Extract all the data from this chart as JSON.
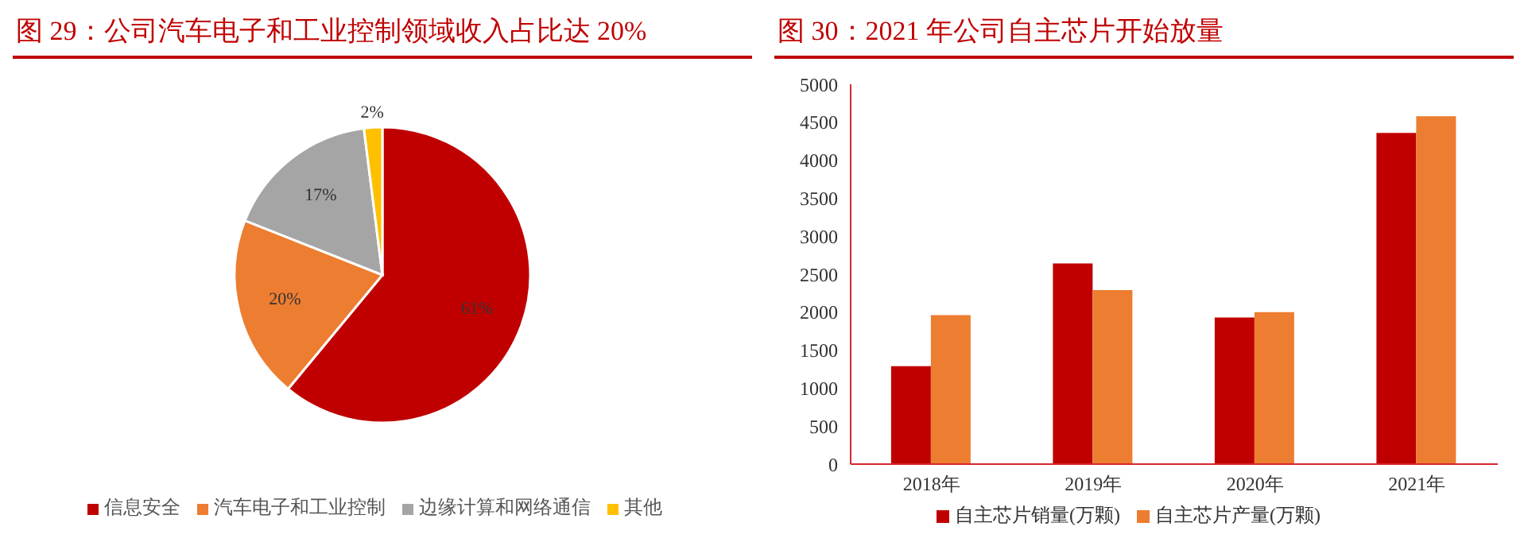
{
  "chart_data": [
    {
      "type": "pie",
      "title": "图 29：公司汽车电子和工业控制领域收入占比达 20%",
      "categories": [
        "信息安全",
        "汽车电子和工业控制",
        "边缘计算和网络通信",
        "其他"
      ],
      "values": [
        61,
        20,
        17,
        2
      ],
      "colors": [
        "#c00000",
        "#ed7d31",
        "#a5a5a5",
        "#ffc000"
      ],
      "value_labels": [
        "61%",
        "20%",
        "17%",
        "2%"
      ],
      "legend": "bottom"
    },
    {
      "type": "bar",
      "title": "图 30：2021 年公司自主芯片开始放量",
      "categories": [
        "2018年",
        "2019年",
        "2020年",
        "2021年"
      ],
      "series": [
        {
          "name": "自主芯片销量(万颗)",
          "color": "#c00000",
          "values": [
            1290,
            2640,
            1930,
            4360
          ]
        },
        {
          "name": "自主芯片产量(万颗)",
          "color": "#ed7d31",
          "values": [
            1960,
            2290,
            2000,
            4580
          ]
        }
      ],
      "ylim": [
        0,
        5000
      ],
      "yticks": [
        0,
        500,
        1000,
        1500,
        2000,
        2500,
        3000,
        3500,
        4000,
        4500,
        5000
      ],
      "grid": false,
      "legend": "bottom"
    }
  ]
}
